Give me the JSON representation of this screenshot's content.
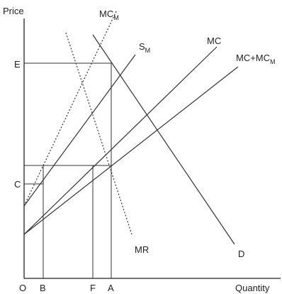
{
  "axes": {
    "y_label": "Price",
    "x_label": "Quantity"
  },
  "origin_label": "O",
  "price_ticks": {
    "E": "E",
    "C": "C"
  },
  "quantity_ticks": {
    "B": "B",
    "F": "F",
    "A": "A"
  },
  "curves": {
    "mc_m": {
      "main": "MC",
      "sub": "M"
    },
    "s_m": {
      "main": "S",
      "sub": "M"
    },
    "mc": {
      "main": "MC"
    },
    "mc_plus_mc_m": {
      "main": "MC+MC",
      "sub": "M"
    },
    "mr": {
      "main": "MR"
    },
    "d": {
      "main": "D"
    }
  }
}
